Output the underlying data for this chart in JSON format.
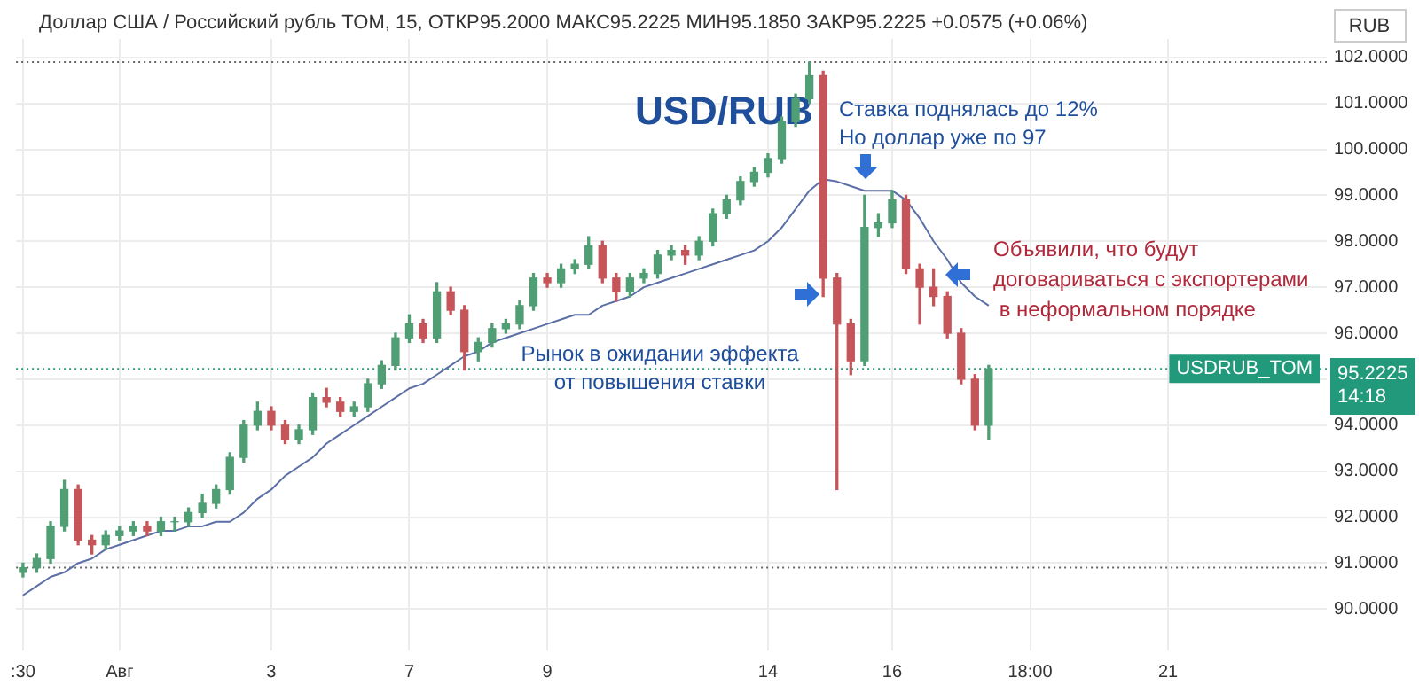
{
  "chart_data": {
    "type": "candlestick",
    "title": "Доллар США / Российский рубль TOM, 15, ОТКР95.2000 МАКС95.2225 МИН95.1850 ЗАКР95.2225 +0.0575 (+0.06%)",
    "ylabel": "RUB",
    "annotations": [
      "USD/RUB",
      "Ставка поднялась до 12%\nНо доллар уже по 97",
      "Объявили, что будут\nдоговариваться с экспортерами\n в неформальном порядке",
      "Рынок в ожидании эффекта\nот повышения ставки",
      "95.2225\n14:18"
    ],
    "categories": [
      ":30",
      null,
      null,
      null,
      null,
      null,
      null,
      "Авг",
      null,
      null,
      null,
      null,
      null,
      null,
      null,
      null,
      null,
      null,
      "3",
      null,
      null,
      null,
      null,
      null,
      null,
      null,
      null,
      null,
      "7",
      null,
      null,
      null,
      null,
      null,
      null,
      null,
      null,
      null,
      "9",
      null,
      null,
      null,
      null,
      null,
      null,
      null,
      null,
      null,
      null,
      null,
      null,
      null,
      null,
      null,
      "14",
      null,
      null,
      null,
      null,
      null,
      null,
      null,
      null,
      "16",
      null,
      null,
      null,
      null,
      null,
      null,
      null,
      null,
      null,
      "18:00",
      null,
      null,
      null,
      null,
      null,
      null,
      null,
      null,
      null,
      "21",
      null,
      null,
      null,
      null,
      null,
      null,
      null,
      null,
      null,
      null,
      null
    ],
    "ohlc": [
      [
        90.8,
        91.0,
        90.7,
        90.9
      ],
      [
        90.9,
        91.2,
        90.8,
        91.1
      ],
      [
        91.1,
        91.9,
        91.0,
        91.8
      ],
      [
        91.8,
        92.8,
        91.7,
        92.6
      ],
      [
        92.6,
        92.7,
        91.4,
        91.5
      ],
      [
        91.5,
        91.6,
        91.2,
        91.4
      ],
      [
        91.4,
        91.7,
        91.3,
        91.6
      ],
      [
        91.6,
        91.8,
        91.5,
        91.7
      ],
      [
        91.7,
        91.9,
        91.6,
        91.8
      ],
      [
        91.8,
        91.9,
        91.6,
        91.7
      ],
      [
        91.7,
        92.0,
        91.6,
        91.9
      ],
      [
        91.9,
        92.0,
        91.7,
        91.9
      ],
      [
        91.9,
        92.2,
        91.8,
        92.1
      ],
      [
        92.1,
        92.5,
        92.0,
        92.3
      ],
      [
        92.3,
        92.7,
        92.2,
        92.6
      ],
      [
        92.6,
        93.4,
        92.5,
        93.3
      ],
      [
        93.3,
        94.1,
        93.2,
        94.0
      ],
      [
        94.0,
        94.5,
        93.9,
        94.3
      ],
      [
        94.3,
        94.4,
        93.9,
        94.0
      ],
      [
        94.0,
        94.1,
        93.6,
        93.7
      ],
      [
        93.7,
        94.0,
        93.6,
        93.9
      ],
      [
        93.9,
        94.7,
        93.8,
        94.6
      ],
      [
        94.6,
        94.8,
        94.4,
        94.5
      ],
      [
        94.5,
        94.6,
        94.2,
        94.3
      ],
      [
        94.3,
        94.5,
        94.2,
        94.4
      ],
      [
        94.4,
        95.0,
        94.3,
        94.9
      ],
      [
        94.9,
        95.4,
        94.8,
        95.3
      ],
      [
        95.3,
        96.0,
        95.2,
        95.9
      ],
      [
        95.9,
        96.4,
        95.8,
        96.2
      ],
      [
        96.2,
        96.3,
        95.8,
        95.9
      ],
      [
        95.9,
        97.1,
        95.8,
        96.9
      ],
      [
        96.9,
        97.0,
        96.4,
        96.5
      ],
      [
        96.5,
        96.6,
        95.2,
        95.6
      ],
      [
        95.6,
        95.9,
        95.4,
        95.8
      ],
      [
        95.8,
        96.2,
        95.7,
        96.1
      ],
      [
        96.1,
        96.3,
        96.0,
        96.2
      ],
      [
        96.2,
        96.7,
        96.1,
        96.6
      ],
      [
        96.6,
        97.3,
        96.5,
        97.2
      ],
      [
        97.2,
        97.3,
        97.0,
        97.1
      ],
      [
        97.1,
        97.5,
        97.0,
        97.4
      ],
      [
        97.4,
        97.6,
        97.3,
        97.5
      ],
      [
        97.5,
        98.1,
        97.4,
        97.9
      ],
      [
        97.9,
        98.0,
        97.1,
        97.2
      ],
      [
        97.2,
        97.3,
        96.7,
        96.9
      ],
      [
        96.9,
        97.3,
        96.8,
        97.2
      ],
      [
        97.2,
        97.4,
        97.1,
        97.3
      ],
      [
        97.3,
        97.8,
        97.2,
        97.7
      ],
      [
        97.7,
        97.9,
        97.6,
        97.8
      ],
      [
        97.8,
        97.9,
        97.5,
        97.7
      ],
      [
        97.7,
        98.1,
        97.6,
        98.0
      ],
      [
        98.0,
        98.7,
        97.9,
        98.6
      ],
      [
        98.6,
        99.0,
        98.5,
        98.9
      ],
      [
        98.9,
        99.4,
        98.8,
        99.3
      ],
      [
        99.3,
        99.6,
        99.2,
        99.5
      ],
      [
        99.5,
        99.9,
        99.4,
        99.8
      ],
      [
        99.8,
        100.7,
        99.7,
        100.6
      ],
      [
        100.6,
        101.2,
        100.5,
        101.1
      ],
      [
        101.1,
        101.9,
        101.0,
        101.6
      ],
      [
        101.6,
        101.7,
        96.8,
        97.2
      ],
      [
        97.2,
        97.3,
        92.6,
        96.2
      ],
      [
        96.2,
        96.3,
        95.1,
        95.4
      ],
      [
        95.4,
        99.0,
        95.3,
        98.3
      ],
      [
        98.3,
        98.6,
        98.1,
        98.4
      ],
      [
        98.4,
        99.1,
        98.3,
        98.9
      ],
      [
        98.9,
        99.0,
        97.3,
        97.4
      ],
      [
        97.4,
        97.5,
        96.2,
        97.0
      ],
      [
        97.0,
        97.4,
        96.6,
        96.8
      ],
      [
        96.8,
        96.9,
        95.9,
        96.0
      ],
      [
        96.0,
        96.1,
        94.9,
        95.0
      ],
      [
        95.0,
        95.1,
        93.9,
        94.0
      ],
      [
        94.0,
        95.3,
        93.7,
        95.2225
      ],
      null,
      null,
      null,
      null,
      null,
      null,
      null,
      null,
      null,
      null,
      null,
      null,
      null,
      null,
      null,
      null,
      null,
      null,
      null,
      null,
      null,
      null,
      null,
      null
    ],
    "series": [
      {
        "type": "line",
        "color": "#5b6fa6",
        "values": [
          90.3,
          90.5,
          90.7,
          90.8,
          91.0,
          91.1,
          91.3,
          91.4,
          91.5,
          91.6,
          91.7,
          91.7,
          91.8,
          91.8,
          91.9,
          91.9,
          92.1,
          92.4,
          92.6,
          92.9,
          93.1,
          93.3,
          93.6,
          93.8,
          94.0,
          94.2,
          94.4,
          94.6,
          94.8,
          94.9,
          95.1,
          95.3,
          95.5,
          95.6,
          95.8,
          95.9,
          96.0,
          96.1,
          96.2,
          96.3,
          96.4,
          96.4,
          96.6,
          96.7,
          96.8,
          97.0,
          97.1,
          97.2,
          97.3,
          97.4,
          97.5,
          97.6,
          97.7,
          97.8,
          98.0,
          98.3,
          98.7,
          99.1,
          99.35,
          99.3,
          99.2,
          99.1,
          99.1,
          99.1,
          98.9,
          98.5,
          98.0,
          97.6,
          97.1,
          96.8,
          96.6,
          null,
          null,
          null,
          null,
          null,
          null,
          null,
          null,
          null,
          null,
          null,
          null,
          null,
          null,
          null,
          null,
          null,
          null,
          null,
          null,
          null,
          null,
          null,
          null
        ]
      }
    ],
    "ylim": [
      89.1,
      102.4
    ],
    "yticks": [
      {
        "value": 90,
        "label": "90.0000"
      },
      {
        "value": 91,
        "label": "91.0000"
      },
      {
        "value": 92,
        "label": "92.0000"
      },
      {
        "value": 93,
        "label": "93.0000"
      },
      {
        "value": 94,
        "label": "94.0000"
      },
      {
        "value": 95,
        "label": null
      },
      {
        "value": 96,
        "label": "96.0000"
      },
      {
        "value": 97,
        "label": "97.0000"
      },
      {
        "value": 98,
        "label": "98.0000"
      },
      {
        "value": 99,
        "label": "99.0000"
      },
      {
        "value": 100,
        "label": "100.0000"
      },
      {
        "value": 101,
        "label": "101.0000"
      },
      {
        "value": 102,
        "label": "102.0000"
      }
    ],
    "grid": true,
    "ref_lines": [
      {
        "axis": "y",
        "value": 95.2225,
        "label": "USDRUB_TOM",
        "color": "#22997a",
        "line_style": "dotted"
      },
      {
        "axis": "y",
        "value": 101.9,
        "color": "#666666",
        "line_style": "dotted"
      },
      {
        "axis": "y",
        "value": 90.9,
        "color": "#666666",
        "line_style": "dotted"
      }
    ]
  }
}
